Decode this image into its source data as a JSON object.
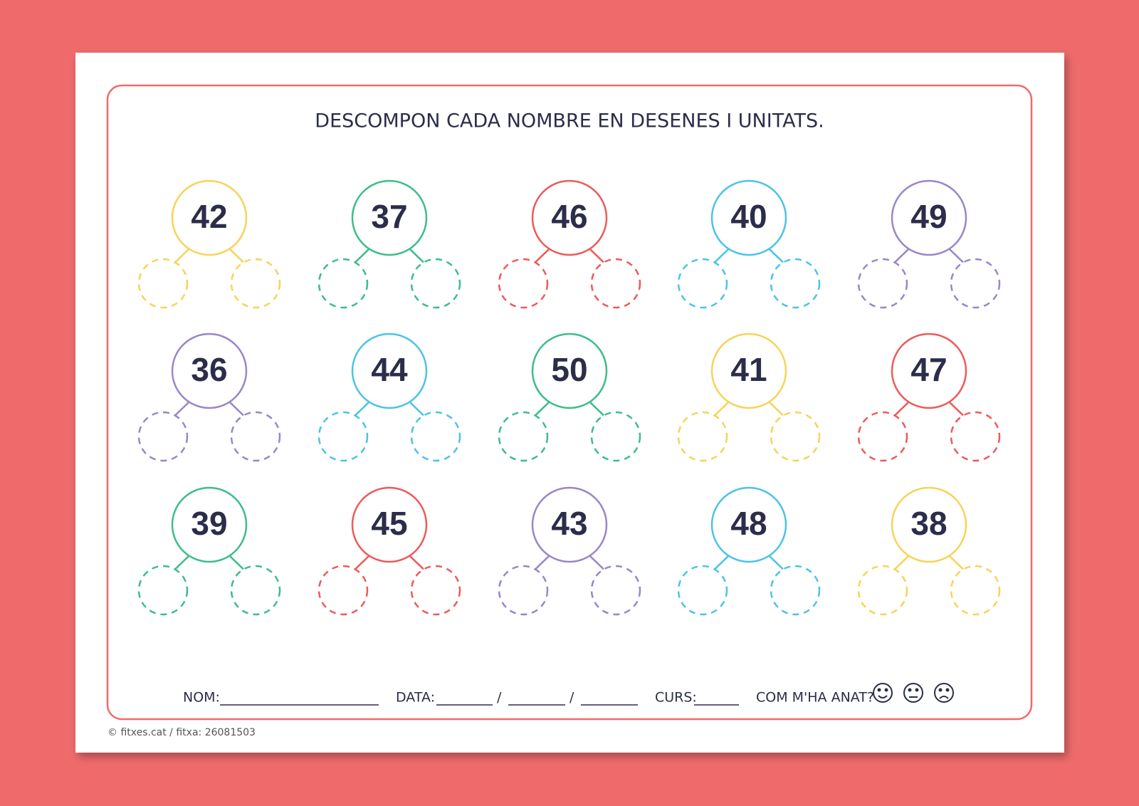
{
  "header": {
    "title": "DESCOMPON CADA NOMBRE EN DESENES I UNITATS."
  },
  "items": [
    {
      "number": 42,
      "color": "#f7d358"
    },
    {
      "number": 37,
      "color": "#3dbd8a"
    },
    {
      "number": 46,
      "color": "#ee5a5a"
    },
    {
      "number": 40,
      "color": "#4cc3e8"
    },
    {
      "number": 49,
      "color": "#9a86c8"
    },
    {
      "number": 36,
      "color": "#9a86c8"
    },
    {
      "number": 44,
      "color": "#4cc3e8"
    },
    {
      "number": 50,
      "color": "#3dbd8a"
    },
    {
      "number": 41,
      "color": "#f7d358"
    },
    {
      "number": 47,
      "color": "#ee5a5a"
    },
    {
      "number": 39,
      "color": "#3dbd8a"
    },
    {
      "number": 45,
      "color": "#ee5a5a"
    },
    {
      "number": 43,
      "color": "#9a86c8"
    },
    {
      "number": 48,
      "color": "#4cc3e8"
    },
    {
      "number": 38,
      "color": "#f7d358"
    }
  ],
  "footer": {
    "name_label": "NOM:",
    "date_label": "DATA:",
    "date_separator_1": "/",
    "date_separator_2": "/",
    "course_label": "CURS:",
    "feedback_label": "COM M'HA ANAT?",
    "copyright": "© fitxes.cat / fitxa: 26081503"
  }
}
